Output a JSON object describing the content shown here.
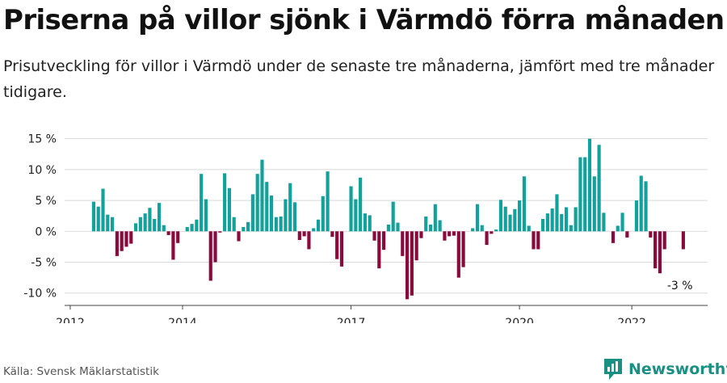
{
  "title": "Priserna på villor sjönk i Värmdö förra månaden",
  "subtitle": "Prisutveckling för villor i Värmdö under de senaste tre månaderna, jämfört med tre månader tidigare.",
  "source": "Källa: Svensk Mäklarstatistik",
  "brand": {
    "name": "Newsworthy",
    "icon": "newsworthy-logo-icon"
  },
  "colors": {
    "positive": "#12a19b",
    "negative": "#8b0a3c",
    "axis": "#444444",
    "grid": "#d9d9d9"
  },
  "chart_data": {
    "type": "bar",
    "title": "",
    "xlabel": "",
    "ylabel": "",
    "ylim": [
      -12,
      16
    ],
    "xlim": [
      2011.9,
      2023.35
    ],
    "y_ticks": [
      15,
      10,
      5,
      0,
      -5,
      -10
    ],
    "y_tick_labels": [
      "15 %",
      "10 %",
      "5 %",
      "0 %",
      "-5 %",
      "-10 %"
    ],
    "x_ticks": [
      2012,
      2014,
      2017,
      2020,
      2022
    ],
    "x_tick_labels": [
      "2012",
      "2014",
      "2017",
      "2020",
      "2022"
    ],
    "grid": "horizontal",
    "x_start": "2012-06",
    "frequency": "monthly",
    "values": [
      4.8,
      4.0,
      6.9,
      2.7,
      2.3,
      -4.0,
      -3.2,
      -2.5,
      -2.0,
      1.3,
      2.3,
      2.9,
      3.8,
      2.0,
      4.6,
      1.0,
      -0.6,
      -4.6,
      -1.9,
      0.0,
      0.7,
      1.2,
      1.9,
      9.3,
      5.2,
      -8.0,
      -5.0,
      -0.2,
      9.4,
      7.0,
      2.3,
      -1.6,
      0.7,
      1.5,
      6.0,
      9.3,
      11.6,
      8.0,
      5.8,
      2.3,
      2.4,
      5.2,
      7.8,
      4.7,
      -1.4,
      -0.8,
      -2.9,
      0.5,
      1.9,
      5.7,
      9.7,
      -0.9,
      -4.5,
      -5.7,
      0.0,
      7.3,
      5.2,
      8.7,
      2.9,
      2.6,
      -1.5,
      -6.0,
      -3.0,
      1.1,
      4.8,
      1.4,
      -4.0,
      -11.0,
      -10.4,
      -4.7,
      -1.1,
      2.4,
      1.1,
      4.4,
      1.8,
      -1.5,
      -0.8,
      -0.7,
      -7.5,
      -5.8,
      0.0,
      0.5,
      4.4,
      1.0,
      -2.2,
      -0.4,
      0.3,
      5.1,
      4.0,
      2.7,
      3.6,
      5.0,
      8.9,
      0.9,
      -2.9,
      -2.9,
      2.0,
      2.9,
      3.7,
      6.0,
      2.8,
      3.9,
      1.0,
      3.9,
      12.0,
      12.0,
      15.0,
      8.9,
      14.0,
      3.0,
      0.0,
      -1.9,
      0.9,
      3.0,
      -1.0,
      0.0,
      5.0,
      9.0,
      8.1,
      -1.0,
      -6.0,
      -6.8,
      -2.9,
      0.0,
      0.0,
      0.0,
      -2.9
    ],
    "annotation": {
      "label": "-3 %",
      "value": -3
    }
  }
}
